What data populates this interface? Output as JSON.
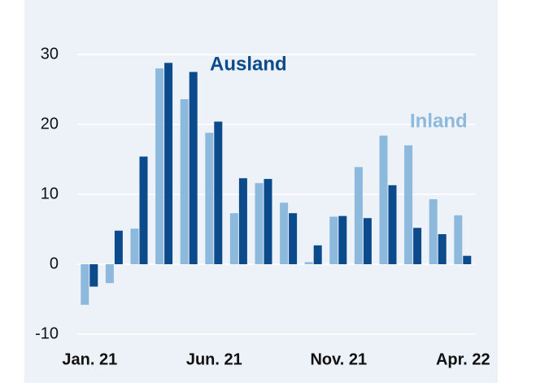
{
  "chart_data": {
    "type": "bar",
    "categories": [
      "Jan. 21",
      null,
      null,
      null,
      null,
      "Jun. 21",
      null,
      null,
      null,
      null,
      "Nov. 21",
      null,
      null,
      null,
      null,
      "Apr. 22"
    ],
    "series": [
      {
        "name": "Inland",
        "color": "#8db9dd",
        "values": [
          -5.8,
          -2.7,
          5.1,
          28.0,
          23.6,
          18.8,
          7.3,
          11.6,
          8.8,
          0.3,
          6.8,
          13.9,
          18.4,
          17.0,
          9.3,
          7.0
        ]
      },
      {
        "name": "Ausland",
        "color": "#0b4a8b",
        "values": [
          -3.2,
          4.8,
          15.4,
          28.8,
          27.5,
          20.4,
          12.3,
          12.2,
          7.3,
          2.7,
          6.9,
          6.6,
          11.3,
          5.2,
          4.3,
          1.2
        ]
      }
    ],
    "ylim": [
      -12,
      35
    ],
    "yticks": [
      -10,
      0,
      10,
      20,
      30
    ],
    "grid": true
  }
}
